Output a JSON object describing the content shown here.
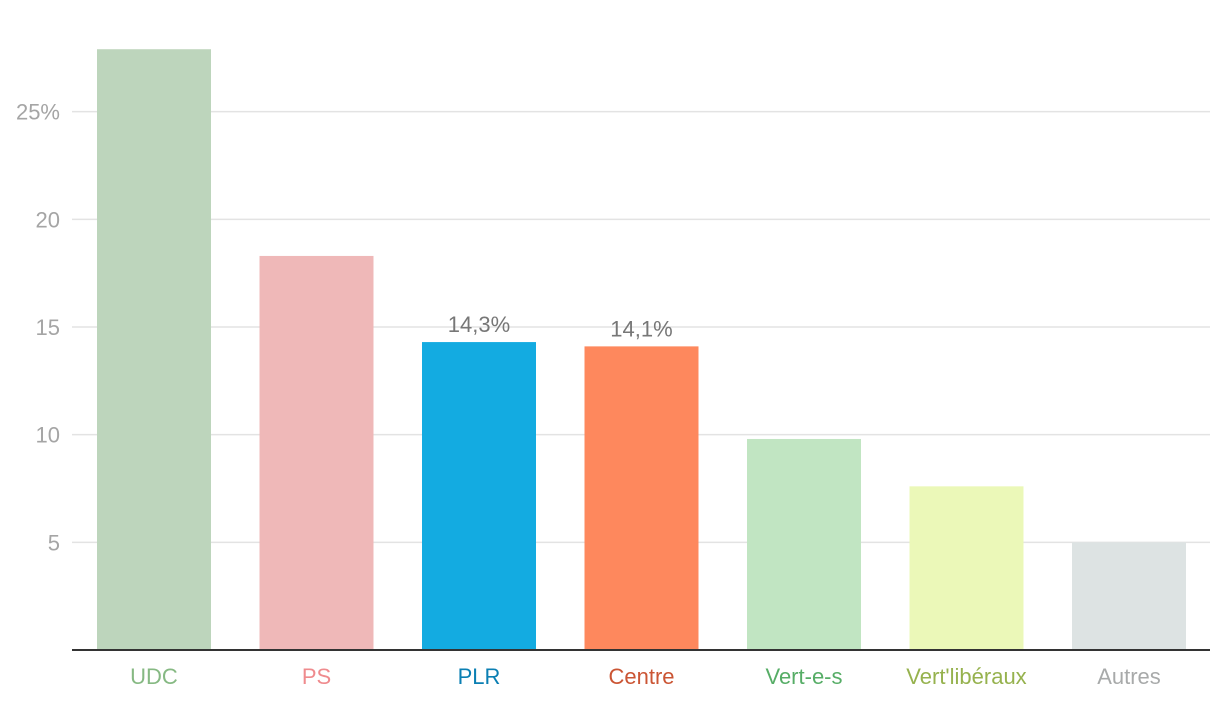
{
  "chart_data": {
    "type": "bar",
    "categories": [
      "UDC",
      "PS",
      "PLR",
      "Centre",
      "Vert-e-s",
      "Vert'libéraux",
      "Autres"
    ],
    "values": [
      27.9,
      18.3,
      14.3,
      14.1,
      9.8,
      7.6,
      5.0
    ],
    "data_labels": [
      "",
      "",
      "14,3%",
      "14,1%",
      "",
      "",
      ""
    ],
    "bar_colors": [
      "#bdd5bc",
      "#efb8b8",
      "#13abe1",
      "#fe885d",
      "#c1e5c2",
      "#ebf8b8",
      "#dde3e3"
    ],
    "label_colors": [
      "#86b983",
      "#ef8b8e",
      "#0b7fb3",
      "#cb5534",
      "#56ad66",
      "#96b24e",
      "#a8aaaa"
    ],
    "y_ticks": [
      {
        "value": 5,
        "label": "5"
      },
      {
        "value": 10,
        "label": "10"
      },
      {
        "value": 15,
        "label": "15"
      },
      {
        "value": 20,
        "label": "20"
      },
      {
        "value": 25,
        "label": "25%"
      }
    ],
    "ylim": [
      0,
      30
    ],
    "grid": true,
    "title": "",
    "xlabel": "",
    "ylabel": ""
  }
}
